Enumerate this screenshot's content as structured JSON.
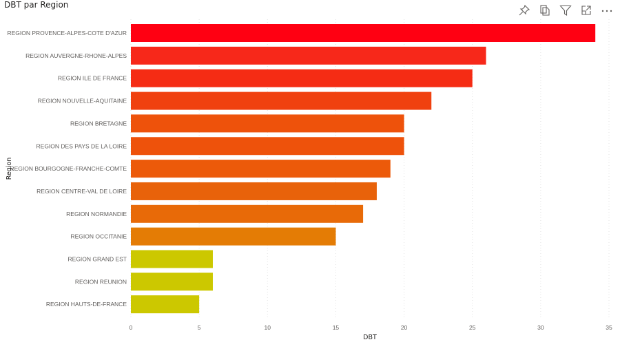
{
  "visual": {
    "title": "DBT par Region",
    "toolbar": [
      {
        "icon": "pin-icon",
        "label": "Pin visual"
      },
      {
        "icon": "copy-icon",
        "label": "Copy visual"
      },
      {
        "icon": "filter-icon",
        "label": "Filters"
      },
      {
        "icon": "focus-mode-icon",
        "label": "Focus mode"
      },
      {
        "icon": "more-options-icon",
        "label": "More options"
      }
    ]
  },
  "chart_data": {
    "type": "bar",
    "orientation": "horizontal",
    "title": "DBT par Region",
    "xlabel": "DBT",
    "ylabel": "Region",
    "xlim": [
      0,
      35
    ],
    "xticks": [
      0,
      5,
      10,
      15,
      20,
      25,
      30,
      35
    ],
    "grid": true,
    "categories": [
      "REGION PROVENCE-ALPES-COTE D'AZUR",
      "REGION AUVERGNE-RHONE-ALPES",
      "REGION ILE DE FRANCE",
      "REGION NOUVELLE-AQUITAINE",
      "REGION BRETAGNE",
      "REGION DES PAYS DE LA LOIRE",
      "REGION BOURGOGNE-FRANCHE-COMTE",
      "REGION CENTRE-VAL DE LOIRE",
      "REGION NORMANDIE",
      "REGION OCCITANIE",
      "REGION GRAND EST",
      "REGION REUNION",
      "REGION HAUTS-DE-FRANCE"
    ],
    "values": [
      34,
      26,
      25,
      22,
      20,
      20,
      19,
      18,
      17,
      15,
      6,
      6,
      5
    ],
    "colors": [
      "#FF0012",
      "#F7281A",
      "#F52C14",
      "#F0410F",
      "#EE520B",
      "#EE520B",
      "#EC5A0A",
      "#E8620A",
      "#E86A08",
      "#E47C05",
      "#CCC800",
      "#CCC800",
      "#CCC800"
    ]
  }
}
